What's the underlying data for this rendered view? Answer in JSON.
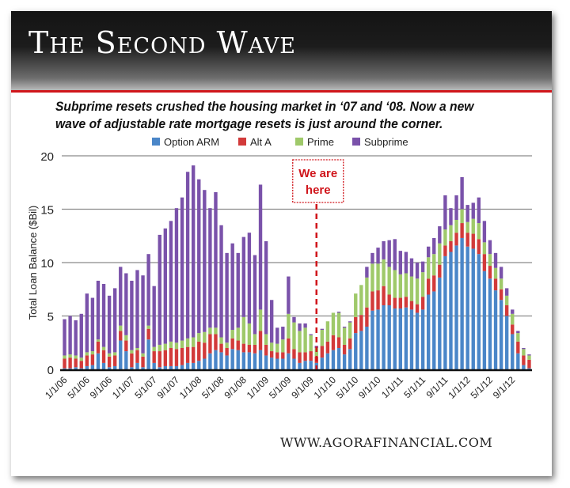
{
  "header": {
    "title": "The Second Wave",
    "subtitle": "Subprime resets crushed the housing market in ‘07 and ‘08. Now a new wave of adjustable rate mortgage resets is just around the corner."
  },
  "footer": {
    "source": "WWW.AGORAFINANCIAL.COM"
  },
  "chart_data": {
    "type": "bar",
    "stacked": true,
    "title": "The Second Wave",
    "xlabel": "",
    "ylabel": "Total Loan Balance ($Bil)",
    "ylim": [
      0,
      20
    ],
    "yticks": [
      0,
      5,
      10,
      15,
      20
    ],
    "grid": true,
    "legend_position": "top-center",
    "annotation": {
      "text_line1": "We are",
      "text_line2": "here",
      "at_month_index": 45,
      "color": "#d0151b"
    },
    "xtick_labels": [
      "1/1/06",
      "5/1/06",
      "9/1/06",
      "1/1/07",
      "5/1/07",
      "9/1/07",
      "1/1/08",
      "5/1/08",
      "9/1/08",
      "1/1/09",
      "5/1/09",
      "9/1/09",
      "1/1/10",
      "5/1/10",
      "9/1/10",
      "1/1/11",
      "5/1/11",
      "9/1/11",
      "1/1/12",
      "5/1/12",
      "9/1/12"
    ],
    "xtick_every": 4,
    "months": 84,
    "series": [
      {
        "name": "Option ARM",
        "color": "#4a86c8",
        "values": [
          0.1,
          0.1,
          0.2,
          0.1,
          0.3,
          0.4,
          1.5,
          0.6,
          0.2,
          0.3,
          2.7,
          1.7,
          0.2,
          0.6,
          0.2,
          2.8,
          0.6,
          0.2,
          0.3,
          0.3,
          0.3,
          0.4,
          0.6,
          0.6,
          0.8,
          1.0,
          1.5,
          1.8,
          1.6,
          1.3,
          1.9,
          1.8,
          1.6,
          1.6,
          1.5,
          1.8,
          1.3,
          1.1,
          1.0,
          1.0,
          1.5,
          1.0,
          0.6,
          0.8,
          0.8,
          0.6,
          1.1,
          1.5,
          1.8,
          2.0,
          1.4,
          1.9,
          3.4,
          3.6,
          4.0,
          5.5,
          5.6,
          6.0,
          6.0,
          5.7,
          5.7,
          5.8,
          5.6,
          5.3,
          5.6,
          7.0,
          7.3,
          8.6,
          10.6,
          11.0,
          11.6,
          12.3,
          11.5,
          11.3,
          10.8,
          9.2,
          8.5,
          7.4,
          6.5,
          5.0,
          3.3,
          1.5,
          0.4,
          0.1
        ]
      },
      {
        "name": "Alt A",
        "color": "#d23a3a",
        "values": [
          0.9,
          1.0,
          0.8,
          0.7,
          1.0,
          1.0,
          1.1,
          1.2,
          1.0,
          1.0,
          0.9,
          1.0,
          1.3,
          1.2,
          1.0,
          1.0,
          1.1,
          1.5,
          1.5,
          1.7,
          1.6,
          1.6,
          1.5,
          1.5,
          1.8,
          1.5,
          1.8,
          1.5,
          0.8,
          0.7,
          1.0,
          0.9,
          0.8,
          0.7,
          0.8,
          1.8,
          1.0,
          0.6,
          0.6,
          0.6,
          1.4,
          0.9,
          1.0,
          0.8,
          0.9,
          0.6,
          1.1,
          1.1,
          1.4,
          1.0,
          0.9,
          1.0,
          1.5,
          1.5,
          1.8,
          1.8,
          1.8,
          1.8,
          1.0,
          1.0,
          1.0,
          1.0,
          0.8,
          0.8,
          1.2,
          1.5,
          1.5,
          1.2,
          1.0,
          1.0,
          1.2,
          1.4,
          1.3,
          1.4,
          1.4,
          1.6,
          1.2,
          1.1,
          1.0,
          1.0,
          0.9,
          1.1,
          0.9,
          0.8
        ]
      },
      {
        "name": "Prime",
        "color": "#9fc96a",
        "values": [
          0.3,
          0.3,
          0.3,
          0.3,
          0.3,
          0.3,
          0.2,
          0.3,
          0.3,
          0.3,
          0.5,
          0.5,
          0.3,
          0.2,
          0.3,
          0.3,
          0.4,
          0.6,
          0.6,
          0.6,
          0.6,
          0.7,
          0.8,
          0.9,
          0.8,
          1.0,
          0.6,
          0.6,
          0.6,
          0.5,
          0.8,
          1.2,
          2.5,
          2.0,
          1.0,
          2.0,
          1.0,
          0.8,
          0.8,
          1.2,
          2.3,
          2.5,
          2.0,
          2.3,
          1.5,
          0.8,
          1.5,
          1.9,
          2.1,
          2.3,
          1.6,
          1.5,
          2.2,
          2.8,
          2.8,
          2.6,
          2.5,
          2.5,
          2.6,
          2.6,
          2.2,
          2.2,
          2.3,
          2.4,
          2.3,
          2.0,
          2.0,
          2.0,
          1.5,
          1.5,
          1.2,
          1.3,
          1.0,
          1.4,
          1.5,
          1.1,
          1.1,
          1.0,
          1.0,
          0.9,
          1.0,
          0.8,
          0.6,
          0.4
        ]
      },
      {
        "name": "Subprime",
        "color": "#7a52aa",
        "values": [
          3.4,
          3.6,
          3.3,
          4.1,
          5.5,
          5.0,
          5.5,
          5.9,
          5.4,
          6.0,
          5.5,
          5.8,
          6.5,
          7.3,
          7.3,
          6.7,
          5.7,
          10.3,
          10.8,
          11.3,
          12.6,
          13.4,
          15.6,
          16.1,
          14.4,
          13.3,
          11.2,
          12.7,
          10.5,
          8.4,
          8.1,
          7.0,
          7.5,
          8.5,
          7.4,
          11.7,
          8.7,
          4.0,
          1.5,
          1.2,
          3.5,
          0.5,
          0.7,
          0.4,
          0.1,
          0.2,
          0.1,
          0.0,
          0.0,
          0.1,
          0.1,
          0.1,
          0.0,
          0.0,
          1.0,
          1.0,
          1.5,
          1.7,
          2.5,
          2.9,
          2.2,
          2.0,
          1.7,
          1.5,
          1.0,
          1.0,
          1.5,
          1.6,
          3.2,
          1.6,
          2.3,
          3.0,
          1.6,
          1.5,
          2.4,
          2.0,
          1.3,
          1.4,
          1.1,
          0.7,
          0.4,
          0.2,
          0.1,
          0.1
        ]
      }
    ]
  }
}
